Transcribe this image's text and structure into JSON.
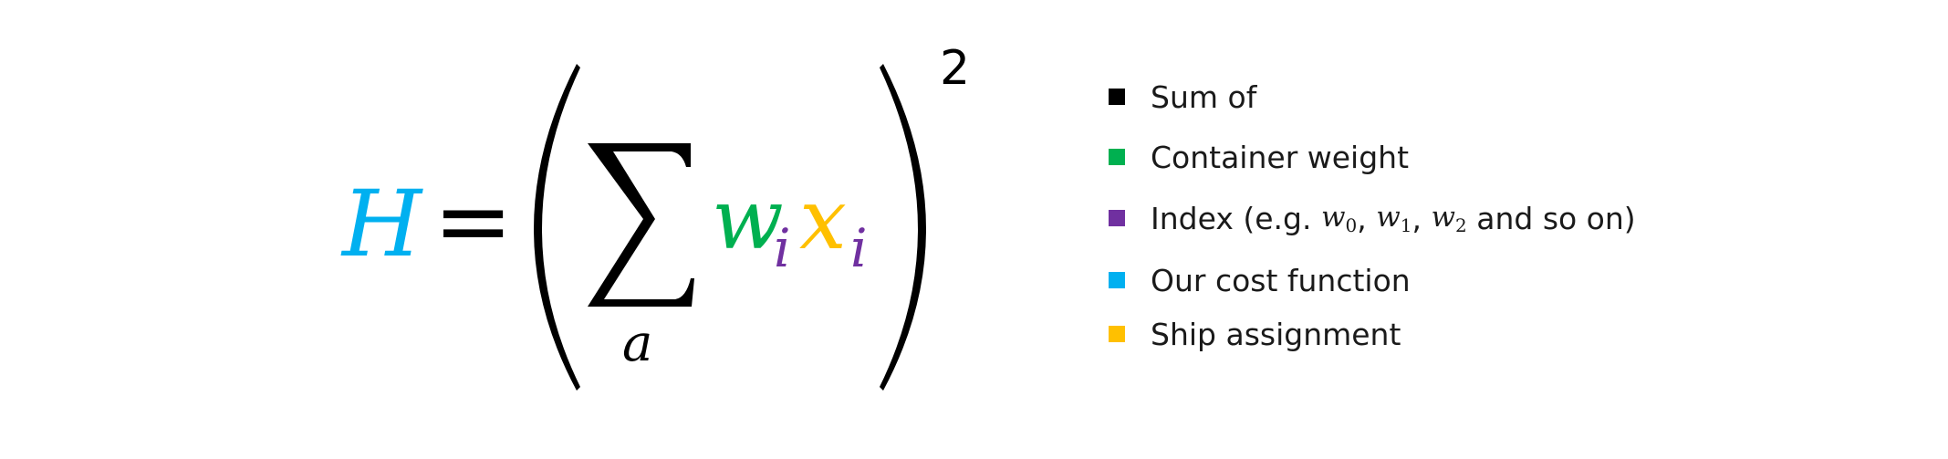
{
  "colors": {
    "black": "#000000",
    "green": "#00b050",
    "purple": "#7030a0",
    "blue": "#00b0f0",
    "yellow": "#ffc000"
  },
  "equation": {
    "lhs": "H",
    "equals": "=",
    "sum_symbol": "∑",
    "sum_index": "a",
    "weight": "w",
    "weight_sub": "i",
    "variable": "x",
    "variable_sub": "i",
    "exponent": "2"
  },
  "legend": {
    "items": [
      {
        "color": "#000000",
        "label": "Sum of"
      },
      {
        "color": "#00b050",
        "label": "Container weight"
      },
      {
        "color": "#7030a0",
        "label_pre": "Index (e.g. ",
        "terms": [
          {
            "var": "w",
            "sub": "0",
            "sep": ", "
          },
          {
            "var": "w",
            "sub": "1",
            "sep": ", "
          },
          {
            "var": "w",
            "sub": "2",
            "sep": ""
          }
        ],
        "label_post": " and so on)"
      },
      {
        "color": "#00b0f0",
        "label": "Our cost function"
      },
      {
        "color": "#ffc000",
        "label": "Ship assignment"
      }
    ]
  }
}
